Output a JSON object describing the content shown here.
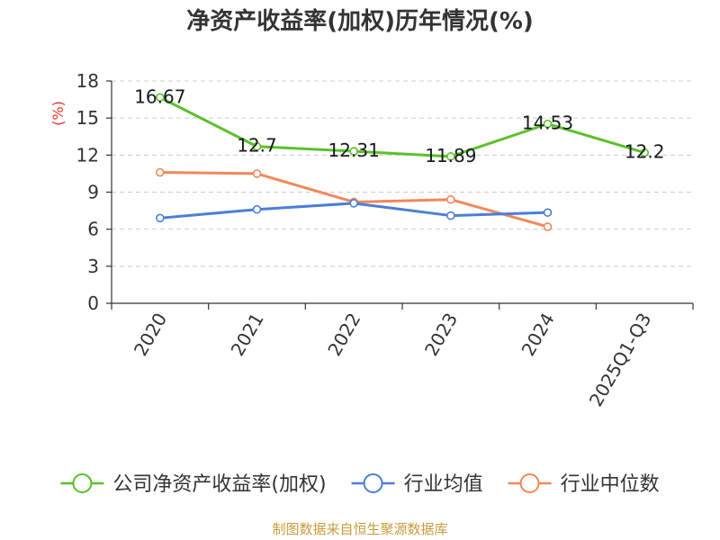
{
  "chart_data": {
    "type": "line",
    "title": "净资产收益率(加权)历年情况(%)",
    "ylabel": "(%)",
    "xlabel": "",
    "categories": [
      "2020",
      "2021",
      "2022",
      "2023",
      "2024",
      "2025Q1-Q3"
    ],
    "ylim": [
      0,
      18
    ],
    "yticks": [
      0,
      3,
      6,
      9,
      12,
      15,
      18
    ],
    "grid": true,
    "legend_position": "bottom",
    "series": [
      {
        "name": "公司净资产收益率(加权)",
        "color": "#5bc02a",
        "values": [
          16.67,
          12.7,
          12.31,
          11.89,
          14.53,
          12.2
        ],
        "data_labels": [
          "16.67",
          "12.7",
          "12.31",
          "11.89",
          "14.53",
          "12.2"
        ]
      },
      {
        "name": "行业均值",
        "color": "#4a7fd8",
        "values": [
          6.9,
          7.6,
          8.1,
          7.1,
          7.35,
          null
        ]
      },
      {
        "name": "行业中位数",
        "color": "#f2875a",
        "values": [
          10.6,
          10.5,
          8.2,
          8.4,
          6.2,
          null
        ]
      }
    ]
  },
  "source": "制图数据来自恒生聚源数据库"
}
